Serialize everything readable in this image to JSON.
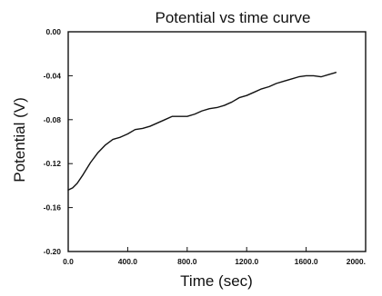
{
  "chart_data": {
    "type": "line",
    "title": "Potential vs time curve",
    "xlabel": "Time (sec)",
    "ylabel": "Potential (V)",
    "xlim": [
      0,
      2000
    ],
    "ylim": [
      -0.2,
      0.0
    ],
    "x_tick_labels": [
      "0.0",
      "400.0",
      "800.0",
      "1200.0",
      "1600.0",
      "2000."
    ],
    "x_tick_values": [
      0,
      400,
      800,
      1200,
      1600,
      2000
    ],
    "y_tick_labels": [
      "0.00",
      "-0.04",
      "-0.08",
      "-0.12",
      "-0.16",
      "-0.20"
    ],
    "y_tick_values": [
      0.0,
      -0.04,
      -0.08,
      -0.12,
      -0.16,
      -0.2
    ],
    "grid": false,
    "line_color": "#111111",
    "series": [
      {
        "x": [
          0,
          30,
          60,
          100,
          150,
          200,
          250,
          300,
          350,
          400,
          450,
          500,
          550,
          600,
          650,
          700,
          750,
          800,
          850,
          900,
          950,
          1000,
          1050,
          1100,
          1150,
          1200,
          1250,
          1300,
          1350,
          1400,
          1450,
          1500,
          1550,
          1600,
          1650,
          1700,
          1750,
          1800
        ],
        "y": [
          -0.144,
          -0.142,
          -0.138,
          -0.13,
          -0.119,
          -0.11,
          -0.103,
          -0.098,
          -0.096,
          -0.093,
          -0.089,
          -0.088,
          -0.086,
          -0.083,
          -0.08,
          -0.077,
          -0.077,
          -0.077,
          -0.075,
          -0.072,
          -0.07,
          -0.069,
          -0.067,
          -0.064,
          -0.06,
          -0.058,
          -0.055,
          -0.052,
          -0.05,
          -0.047,
          -0.045,
          -0.043,
          -0.041,
          -0.04,
          -0.04,
          -0.041,
          -0.039,
          -0.037
        ]
      }
    ]
  }
}
